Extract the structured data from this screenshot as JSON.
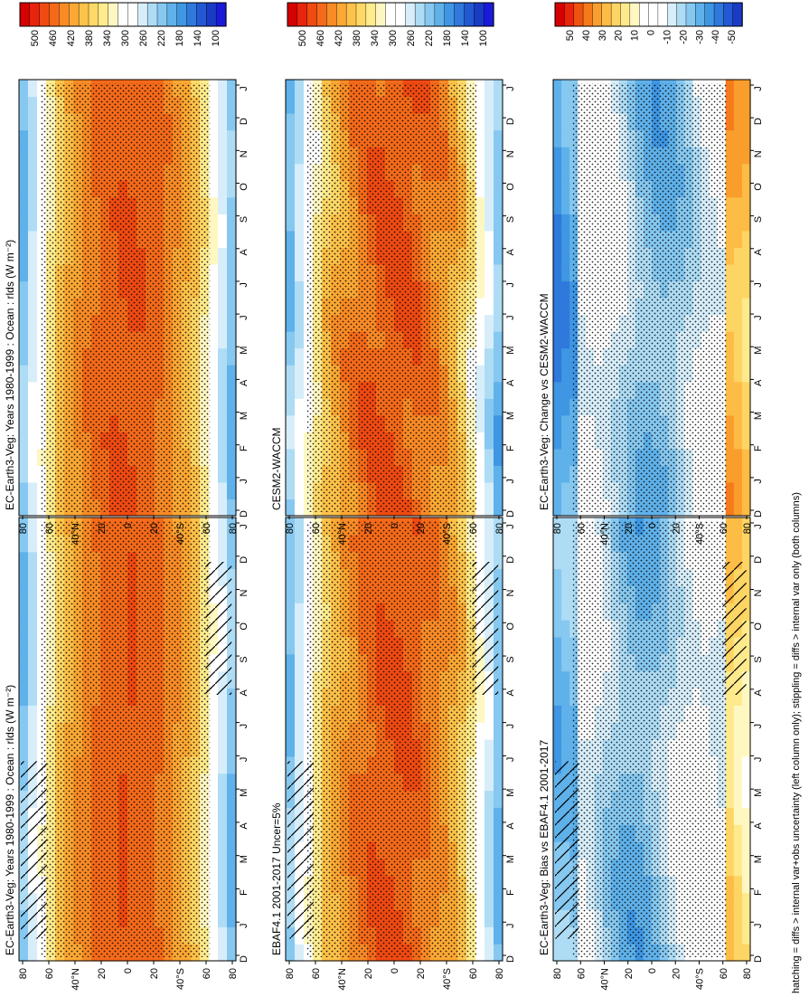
{
  "figure": {
    "footnote": "hatching = diffs > internal var+obs uncertainty (left column only); stippling = diffs > internal var only (both columns)",
    "orientation_note": "figure is rotated 90 degrees clockwise"
  },
  "colors": {
    "abs_scale": [
      "#d60000",
      "#e8250c",
      "#ef4a12",
      "#f46a1a",
      "#f88b26",
      "#fba834",
      "#fdc24a",
      "#fed968",
      "#ffec8e",
      "#fff7c2",
      "#ffffff",
      "#ffffff",
      "#d7eefa",
      "#aedcf5",
      "#86c8f0",
      "#5fb1ea",
      "#3f96e3",
      "#2f78dc",
      "#2258d2",
      "#1a3bc6",
      "#1a1adb"
    ],
    "diff_scale": [
      "#d60000",
      "#e8250c",
      "#f0520f",
      "#f57a1c",
      "#f99e2d",
      "#fcbc46",
      "#fdd564",
      "#feea8c",
      "#fff7c2",
      "#ffffff",
      "#ffffff",
      "#ffffff",
      "#d7eefa",
      "#aedcf5",
      "#86c8f0",
      "#5fb1ea",
      "#3f96e3",
      "#2f78dc",
      "#2258d2",
      "#1a3bc6"
    ]
  },
  "chart_data": [
    {
      "type": "heatmap",
      "panel": "top-left",
      "title": "EC-Earth3-Veg: Years 1980-1999 : Ocean : rlds (W m⁻²)",
      "x_ticks": [
        "D",
        "J",
        "F",
        "M",
        "A",
        "M",
        "J",
        "J",
        "A",
        "S",
        "O",
        "N",
        "D",
        "J"
      ],
      "y_ticks": [
        "80",
        "60",
        "40°N",
        "20",
        "0",
        "20",
        "40°S",
        "60",
        "80"
      ],
      "colorbar_ticks": [
        "500",
        "460",
        "420",
        "380",
        "340",
        "300",
        "260",
        "220",
        "180",
        "140",
        "100"
      ],
      "units": "W m-2",
      "hatching": true,
      "stippling": true
    },
    {
      "type": "heatmap",
      "panel": "top-right",
      "title": "EC-Earth3-Veg: Years 1980-1999 : Ocean : rlds (W m⁻²)",
      "x_ticks": [
        "D",
        "J",
        "F",
        "M",
        "A",
        "M",
        "J",
        "J",
        "A",
        "S",
        "O",
        "N",
        "D",
        "J"
      ],
      "y_ticks": [
        "80",
        "60",
        "40°N",
        "20",
        "0",
        "20",
        "40°S",
        "60",
        "80"
      ],
      "colorbar_ticks": [
        "500",
        "460",
        "420",
        "380",
        "340",
        "300",
        "260",
        "220",
        "180",
        "140",
        "100"
      ],
      "units": "W m-2",
      "hatching": false,
      "stippling": true
    },
    {
      "type": "heatmap",
      "panel": "middle-left",
      "title": "EBAF4.1 2001-2017 Uncer=5%",
      "x_ticks": [
        "D",
        "J",
        "F",
        "M",
        "A",
        "M",
        "J",
        "J",
        "A",
        "S",
        "O",
        "N",
        "D",
        "J"
      ],
      "y_ticks": [
        "80",
        "60",
        "40°N",
        "20",
        "0",
        "20",
        "40°S",
        "60",
        "80"
      ],
      "colorbar_ticks": [
        "500",
        "460",
        "420",
        "380",
        "340",
        "300",
        "260",
        "220",
        "180",
        "140",
        "100"
      ],
      "units": "W m-2",
      "hatching": true,
      "stippling": true
    },
    {
      "type": "heatmap",
      "panel": "middle-right",
      "title": "CESM2-WACCM",
      "x_ticks": [
        "D",
        "J",
        "F",
        "M",
        "A",
        "M",
        "J",
        "J",
        "A",
        "S",
        "O",
        "N",
        "D",
        "J"
      ],
      "y_ticks": [
        "80",
        "60",
        "40°N",
        "20",
        "0",
        "20",
        "40°S",
        "60",
        "80"
      ],
      "colorbar_ticks": [
        "500",
        "460",
        "420",
        "380",
        "340",
        "300",
        "260",
        "220",
        "180",
        "140",
        "100"
      ],
      "units": "W m-2",
      "hatching": false,
      "stippling": true
    },
    {
      "type": "heatmap",
      "panel": "bottom-left",
      "title": "EC-Earth3-Veg: Bias vs EBAF4.1 2001-2017",
      "x_ticks": [
        "D",
        "J",
        "F",
        "M",
        "A",
        "M",
        "J",
        "J",
        "A",
        "S",
        "O",
        "N",
        "D",
        "J"
      ],
      "y_ticks": [
        "80",
        "60",
        "40°N",
        "20",
        "0",
        "20",
        "40°S",
        "60",
        "80"
      ],
      "colorbar_ticks": [
        "50",
        "40",
        "30",
        "20",
        "10",
        "0",
        "-10",
        "-20",
        "-30",
        "-40",
        "-50"
      ],
      "units": "W m-2",
      "hatching": true,
      "stippling": true
    },
    {
      "type": "heatmap",
      "panel": "bottom-right",
      "title": "EC-Earth3-Veg: Change vs CESM2-WACCM",
      "x_ticks": [
        "D",
        "J",
        "F",
        "M",
        "A",
        "M",
        "J",
        "J",
        "A",
        "S",
        "O",
        "N",
        "D",
        "J"
      ],
      "y_ticks": [
        "80",
        "60",
        "40°N",
        "20",
        "0",
        "20",
        "40°S",
        "60",
        "80"
      ],
      "colorbar_ticks": [
        "50",
        "40",
        "30",
        "20",
        "10",
        "0",
        "-10",
        "-20",
        "-30",
        "-40",
        "-50"
      ],
      "units": "W m-2",
      "hatching": false,
      "stippling": true
    }
  ]
}
